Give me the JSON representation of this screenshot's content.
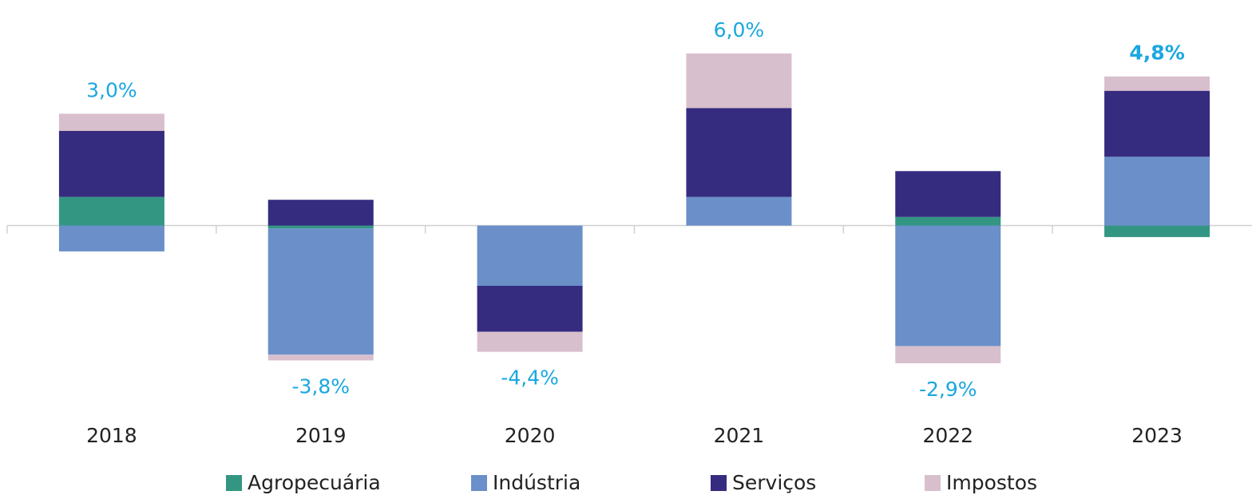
{
  "chart_data": {
    "type": "stacked_bar",
    "categories": [
      "2018",
      "2019",
      "2020",
      "2021",
      "2022",
      "2023"
    ],
    "series": [
      {
        "name": "Agropecuária",
        "color": "#339683",
        "values": [
          1.0,
          -0.1,
          0,
          0,
          0.3,
          -0.4
        ]
      },
      {
        "name": "Indústria",
        "color": "#6a8fc9",
        "values": [
          -0.9,
          -4.4,
          -2.1,
          1.0,
          -4.2,
          2.4
        ]
      },
      {
        "name": "Serviços",
        "color": "#352c7f",
        "values": [
          2.3,
          0.9,
          -1.6,
          3.1,
          1.6,
          2.3
        ]
      },
      {
        "name": "Impostos",
        "color": "#d8bfcd",
        "values": [
          0.6,
          -0.2,
          -0.7,
          1.9,
          -0.6,
          0.5
        ]
      }
    ],
    "totals": {
      "values": [
        3.0,
        -3.8,
        -4.4,
        6.0,
        -2.9,
        4.8
      ],
      "value_labels": [
        "3,0%",
        "-3,8%",
        "-4,4%",
        "6,0%",
        "-2,9%",
        "4,8%"
      ]
    },
    "legend": "bottom"
  }
}
